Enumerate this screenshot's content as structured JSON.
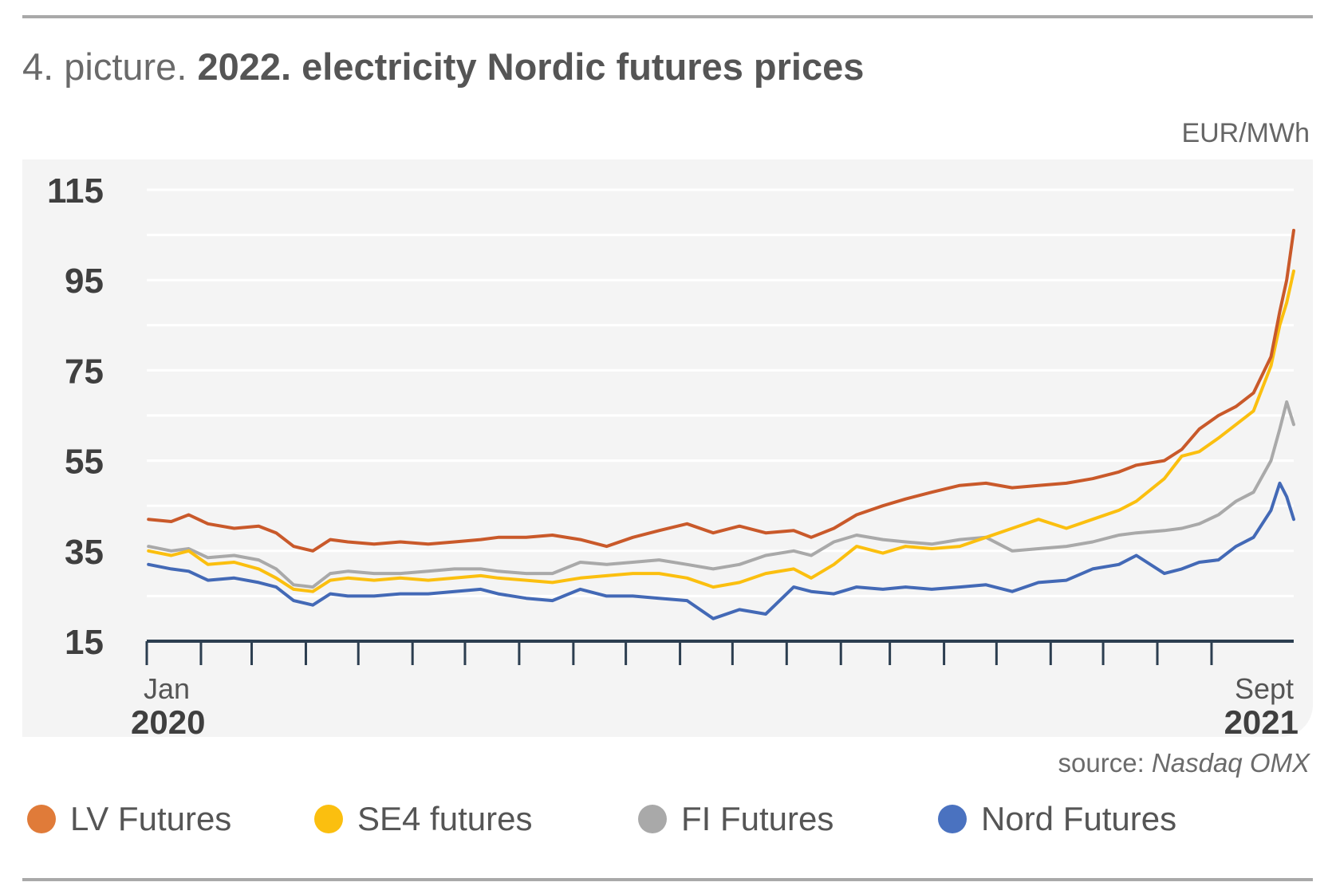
{
  "header": {
    "title_prefix": "4. picture.",
    "title_main": "2022. electricity Nordic futures prices"
  },
  "unit_label": "EUR/MWh",
  "source": {
    "prefix": "source:",
    "org": "Nasdaq OMX"
  },
  "colors": {
    "lv": "#c9592a",
    "se4": "#fbbf0f",
    "fi": "#a9a9a9",
    "nord": "#4369b6",
    "axis": "#2c3e50",
    "grid": "#ffffff",
    "panel": "#f4f4f4"
  },
  "chart_data": {
    "type": "line",
    "title": "2022. electricity Nordic futures prices",
    "ylabel": "EUR/MWh",
    "xlabel": "",
    "x_range": [
      "Jan 2020",
      "Sept 2021"
    ],
    "ylim": [
      15,
      115
    ],
    "y_ticks": [
      15,
      35,
      55,
      75,
      95,
      115
    ],
    "x_tick_labels": [
      {
        "month": "Jan",
        "year": "2020"
      },
      {
        "month": "Sept",
        "year": "2021"
      }
    ],
    "x_tick_months": [
      "2020-01",
      "2020-02",
      "2020-03",
      "2020-04",
      "2020-05",
      "2020-06",
      "2020-07",
      "2020-08",
      "2020-09",
      "2020-10",
      "2020-11",
      "2020-12",
      "2021-01",
      "2021-02",
      "2021-03",
      "2021-04",
      "2021-05",
      "2021-06",
      "2021-07",
      "2021-08",
      "2021-09"
    ],
    "grid": true,
    "legend_position": "bottom",
    "series": [
      {
        "name": "LV Futures",
        "color": "#c9592a",
        "points": [
          [
            "2020-01-02",
            42
          ],
          [
            "2020-01-15",
            41.5
          ],
          [
            "2020-01-25",
            43
          ],
          [
            "2020-02-05",
            41
          ],
          [
            "2020-02-20",
            40
          ],
          [
            "2020-03-05",
            40.5
          ],
          [
            "2020-03-15",
            39
          ],
          [
            "2020-03-25",
            36
          ],
          [
            "2020-04-05",
            35
          ],
          [
            "2020-04-15",
            37.5
          ],
          [
            "2020-04-25",
            37
          ],
          [
            "2020-05-10",
            36.5
          ],
          [
            "2020-05-25",
            37
          ],
          [
            "2020-06-10",
            36.5
          ],
          [
            "2020-06-25",
            37
          ],
          [
            "2020-07-10",
            37.5
          ],
          [
            "2020-07-20",
            38
          ],
          [
            "2020-08-05",
            38
          ],
          [
            "2020-08-20",
            38.5
          ],
          [
            "2020-09-05",
            37.5
          ],
          [
            "2020-09-20",
            36
          ],
          [
            "2020-10-05",
            38
          ],
          [
            "2020-10-20",
            39.5
          ],
          [
            "2020-11-05",
            41
          ],
          [
            "2020-11-20",
            39
          ],
          [
            "2020-12-05",
            40.5
          ],
          [
            "2020-12-20",
            39
          ],
          [
            "2021-01-05",
            39.5
          ],
          [
            "2021-01-15",
            38
          ],
          [
            "2021-01-28",
            40
          ],
          [
            "2021-02-10",
            43
          ],
          [
            "2021-02-25",
            45
          ],
          [
            "2021-03-10",
            46.5
          ],
          [
            "2021-03-25",
            48
          ],
          [
            "2021-04-10",
            49.5
          ],
          [
            "2021-04-25",
            50
          ],
          [
            "2021-05-10",
            49
          ],
          [
            "2021-05-25",
            49.5
          ],
          [
            "2021-06-10",
            50
          ],
          [
            "2021-06-25",
            51
          ],
          [
            "2021-07-10",
            52.5
          ],
          [
            "2021-07-20",
            54
          ],
          [
            "2021-08-05",
            55
          ],
          [
            "2021-08-15",
            57.5
          ],
          [
            "2021-08-25",
            62
          ],
          [
            "2021-09-05",
            65
          ],
          [
            "2021-09-15",
            67
          ],
          [
            "2021-09-25",
            70
          ],
          [
            "2021-10-05",
            78
          ],
          [
            "2021-10-10",
            88
          ],
          [
            "2021-10-14",
            95
          ],
          [
            "2021-10-18",
            106
          ]
        ]
      },
      {
        "name": "SE4 futures",
        "color": "#fbbf0f",
        "points": [
          [
            "2020-01-02",
            35
          ],
          [
            "2020-01-15",
            34
          ],
          [
            "2020-01-25",
            35
          ],
          [
            "2020-02-05",
            32
          ],
          [
            "2020-02-20",
            32.5
          ],
          [
            "2020-03-05",
            31
          ],
          [
            "2020-03-15",
            29
          ],
          [
            "2020-03-25",
            26.5
          ],
          [
            "2020-04-05",
            26
          ],
          [
            "2020-04-15",
            28.5
          ],
          [
            "2020-04-25",
            29
          ],
          [
            "2020-05-10",
            28.5
          ],
          [
            "2020-05-25",
            29
          ],
          [
            "2020-06-10",
            28.5
          ],
          [
            "2020-06-25",
            29
          ],
          [
            "2020-07-10",
            29.5
          ],
          [
            "2020-07-20",
            29
          ],
          [
            "2020-08-05",
            28.5
          ],
          [
            "2020-08-20",
            28
          ],
          [
            "2020-09-05",
            29
          ],
          [
            "2020-09-20",
            29.5
          ],
          [
            "2020-10-05",
            30
          ],
          [
            "2020-10-20",
            30
          ],
          [
            "2020-11-05",
            29
          ],
          [
            "2020-11-20",
            27
          ],
          [
            "2020-12-05",
            28
          ],
          [
            "2020-12-20",
            30
          ],
          [
            "2021-01-05",
            31
          ],
          [
            "2021-01-15",
            29
          ],
          [
            "2021-01-28",
            32
          ],
          [
            "2021-02-10",
            36
          ],
          [
            "2021-02-25",
            34.5
          ],
          [
            "2021-03-10",
            36
          ],
          [
            "2021-03-25",
            35.5
          ],
          [
            "2021-04-10",
            36
          ],
          [
            "2021-04-25",
            38
          ],
          [
            "2021-05-10",
            40
          ],
          [
            "2021-05-25",
            42
          ],
          [
            "2021-06-10",
            40
          ],
          [
            "2021-06-25",
            42
          ],
          [
            "2021-07-10",
            44
          ],
          [
            "2021-07-20",
            46
          ],
          [
            "2021-08-05",
            51
          ],
          [
            "2021-08-15",
            56
          ],
          [
            "2021-08-25",
            57
          ],
          [
            "2021-09-05",
            60
          ],
          [
            "2021-09-15",
            63
          ],
          [
            "2021-09-25",
            66
          ],
          [
            "2021-10-05",
            76
          ],
          [
            "2021-10-10",
            85
          ],
          [
            "2021-10-14",
            90
          ],
          [
            "2021-10-18",
            97
          ]
        ]
      },
      {
        "name": "FI Futures",
        "color": "#a9a9a9",
        "points": [
          [
            "2020-01-02",
            36
          ],
          [
            "2020-01-15",
            35
          ],
          [
            "2020-01-25",
            35.5
          ],
          [
            "2020-02-05",
            33.5
          ],
          [
            "2020-02-20",
            34
          ],
          [
            "2020-03-05",
            33
          ],
          [
            "2020-03-15",
            31
          ],
          [
            "2020-03-25",
            27.5
          ],
          [
            "2020-04-05",
            27
          ],
          [
            "2020-04-15",
            30
          ],
          [
            "2020-04-25",
            30.5
          ],
          [
            "2020-05-10",
            30
          ],
          [
            "2020-05-25",
            30
          ],
          [
            "2020-06-10",
            30.5
          ],
          [
            "2020-06-25",
            31
          ],
          [
            "2020-07-10",
            31
          ],
          [
            "2020-07-20",
            30.5
          ],
          [
            "2020-08-05",
            30
          ],
          [
            "2020-08-20",
            30
          ],
          [
            "2020-09-05",
            32.5
          ],
          [
            "2020-09-20",
            32
          ],
          [
            "2020-10-05",
            32.5
          ],
          [
            "2020-10-20",
            33
          ],
          [
            "2020-11-05",
            32
          ],
          [
            "2020-11-20",
            31
          ],
          [
            "2020-12-05",
            32
          ],
          [
            "2020-12-20",
            34
          ],
          [
            "2021-01-05",
            35
          ],
          [
            "2021-01-15",
            34
          ],
          [
            "2021-01-28",
            37
          ],
          [
            "2021-02-10",
            38.5
          ],
          [
            "2021-02-25",
            37.5
          ],
          [
            "2021-03-10",
            37
          ],
          [
            "2021-03-25",
            36.5
          ],
          [
            "2021-04-10",
            37.5
          ],
          [
            "2021-04-25",
            38
          ],
          [
            "2021-05-10",
            35
          ],
          [
            "2021-05-25",
            35.5
          ],
          [
            "2021-06-10",
            36
          ],
          [
            "2021-06-25",
            37
          ],
          [
            "2021-07-10",
            38.5
          ],
          [
            "2021-07-20",
            39
          ],
          [
            "2021-08-05",
            39.5
          ],
          [
            "2021-08-15",
            40
          ],
          [
            "2021-08-25",
            41
          ],
          [
            "2021-09-05",
            43
          ],
          [
            "2021-09-15",
            46
          ],
          [
            "2021-09-25",
            48
          ],
          [
            "2021-10-05",
            55
          ],
          [
            "2021-10-10",
            62
          ],
          [
            "2021-10-14",
            68
          ],
          [
            "2021-10-18",
            63
          ]
        ]
      },
      {
        "name": "Nord Futures",
        "color": "#4369b6",
        "points": [
          [
            "2020-01-02",
            32
          ],
          [
            "2020-01-15",
            31
          ],
          [
            "2020-01-25",
            30.5
          ],
          [
            "2020-02-05",
            28.5
          ],
          [
            "2020-02-20",
            29
          ],
          [
            "2020-03-05",
            28
          ],
          [
            "2020-03-15",
            27
          ],
          [
            "2020-03-25",
            24
          ],
          [
            "2020-04-05",
            23
          ],
          [
            "2020-04-15",
            25.5
          ],
          [
            "2020-04-25",
            25
          ],
          [
            "2020-05-10",
            25
          ],
          [
            "2020-05-25",
            25.5
          ],
          [
            "2020-06-10",
            25.5
          ],
          [
            "2020-06-25",
            26
          ],
          [
            "2020-07-10",
            26.5
          ],
          [
            "2020-07-20",
            25.5
          ],
          [
            "2020-08-05",
            24.5
          ],
          [
            "2020-08-20",
            24
          ],
          [
            "2020-09-05",
            26.5
          ],
          [
            "2020-09-20",
            25
          ],
          [
            "2020-10-05",
            25
          ],
          [
            "2020-10-20",
            24.5
          ],
          [
            "2020-11-05",
            24
          ],
          [
            "2020-11-20",
            20
          ],
          [
            "2020-12-05",
            22
          ],
          [
            "2020-12-20",
            21
          ],
          [
            "2021-01-05",
            27
          ],
          [
            "2021-01-15",
            26
          ],
          [
            "2021-01-28",
            25.5
          ],
          [
            "2021-02-10",
            27
          ],
          [
            "2021-02-25",
            26.5
          ],
          [
            "2021-03-10",
            27
          ],
          [
            "2021-03-25",
            26.5
          ],
          [
            "2021-04-10",
            27
          ],
          [
            "2021-04-25",
            27.5
          ],
          [
            "2021-05-10",
            26
          ],
          [
            "2021-05-25",
            28
          ],
          [
            "2021-06-10",
            28.5
          ],
          [
            "2021-06-25",
            31
          ],
          [
            "2021-07-10",
            32
          ],
          [
            "2021-07-20",
            34
          ],
          [
            "2021-08-05",
            30
          ],
          [
            "2021-08-15",
            31
          ],
          [
            "2021-08-25",
            32.5
          ],
          [
            "2021-09-05",
            33
          ],
          [
            "2021-09-15",
            36
          ],
          [
            "2021-09-25",
            38
          ],
          [
            "2021-10-05",
            44
          ],
          [
            "2021-10-10",
            50
          ],
          [
            "2021-10-14",
            47
          ],
          [
            "2021-10-18",
            42
          ]
        ]
      }
    ]
  }
}
